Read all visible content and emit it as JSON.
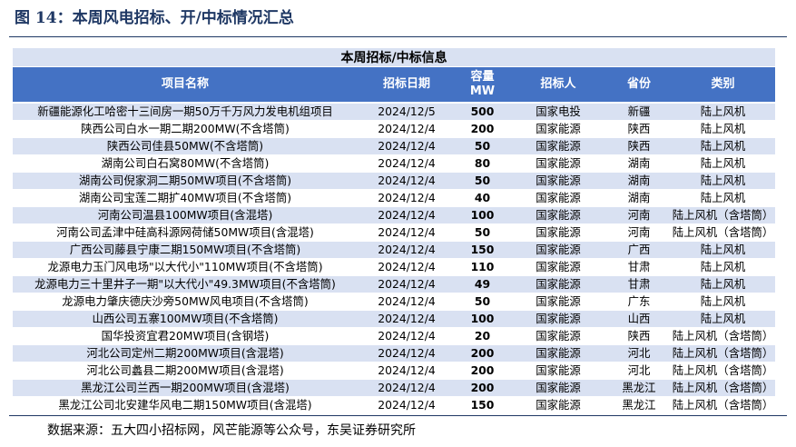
{
  "figure_title": "图 14：本周风电招标、开/中标情况汇总",
  "table": {
    "banner": "本周招标/中标信息",
    "headers": {
      "name": "项目名称",
      "date": "招标日期",
      "capacity_line1": "容量",
      "capacity_line2": "MW",
      "tenderer": "招标人",
      "province": "省份",
      "category": "类别"
    },
    "rows": [
      {
        "name": "新疆能源化工哈密十三间房一期50万千万风力发电机组项目",
        "date": "2024/12/5",
        "capacity": "500",
        "tenderer": "国家电投",
        "province": "新疆",
        "category": "陆上风机"
      },
      {
        "name": "陕西公司白水一期二期200MW(不含塔筒)",
        "date": "2024/12/4",
        "capacity": "200",
        "tenderer": "国家能源",
        "province": "陕西",
        "category": "陆上风机"
      },
      {
        "name": "陕西公司佳县50MW(不含塔筒)",
        "date": "2024/12/4",
        "capacity": "50",
        "tenderer": "国家能源",
        "province": "陕西",
        "category": "陆上风机"
      },
      {
        "name": "湖南公司白石窝80MW(不含塔筒)",
        "date": "2024/12/4",
        "capacity": "80",
        "tenderer": "国家能源",
        "province": "湖南",
        "category": "陆上风机"
      },
      {
        "name": "湖南公司倪家洞二期50MW项目(不含塔筒)",
        "date": "2024/12/4",
        "capacity": "50",
        "tenderer": "国家能源",
        "province": "湖南",
        "category": "陆上风机"
      },
      {
        "name": "湖南公司宝莲二期扩40MW项目(不含塔筒)",
        "date": "2024/12/4",
        "capacity": "40",
        "tenderer": "国家能源",
        "province": "湖南",
        "category": "陆上风机"
      },
      {
        "name": "河南公司温县100MW项目(含混塔)",
        "date": "2024/12/4",
        "capacity": "100",
        "tenderer": "国家能源",
        "province": "河南",
        "category": "陆上风机（含塔筒）"
      },
      {
        "name": "河南公司孟津中硅高科源网荷储50MW项目(含混塔)",
        "date": "2024/12/4",
        "capacity": "50",
        "tenderer": "国家能源",
        "province": "河南",
        "category": "陆上风机（含塔筒）"
      },
      {
        "name": "广西公司藤县宁康二期150MW项目(不含塔筒)",
        "date": "2024/12/4",
        "capacity": "150",
        "tenderer": "国家能源",
        "province": "广西",
        "category": "陆上风机"
      },
      {
        "name": "龙源电力玉门风电场\"以大代小\"110MW项目(不含塔筒)",
        "date": "2024/12/4",
        "capacity": "110",
        "tenderer": "国家能源",
        "province": "甘肃",
        "category": "陆上风机"
      },
      {
        "name": "龙源电力三十里井子一期\"以大代小\"49.3MW项目(不含塔筒)",
        "date": "2024/12/4",
        "capacity": "49",
        "tenderer": "国家能源",
        "province": "甘肃",
        "category": "陆上风机"
      },
      {
        "name": "龙源电力肇庆德庆沙旁50MW风电项目(不含塔筒)",
        "date": "2024/12/4",
        "capacity": "50",
        "tenderer": "国家能源",
        "province": "广东",
        "category": "陆上风机"
      },
      {
        "name": "山西公司五寨100MW项目(不含塔筒)",
        "date": "2024/12/4",
        "capacity": "100",
        "tenderer": "国家能源",
        "province": "山西",
        "category": "陆上风机"
      },
      {
        "name": "国华投资宜君20MW项目(含钢塔)",
        "date": "2024/12/4",
        "capacity": "20",
        "tenderer": "国家能源",
        "province": "陕西",
        "category": "陆上风机（含塔筒）"
      },
      {
        "name": "河北公司定州二期200MW项目(含混塔)",
        "date": "2024/12/4",
        "capacity": "200",
        "tenderer": "国家能源",
        "province": "河北",
        "category": "陆上风机（含塔筒）"
      },
      {
        "name": "河北公司蠡县二期200MW项目(含混塔)",
        "date": "2024/12/4",
        "capacity": "200",
        "tenderer": "国家能源",
        "province": "河北",
        "category": "陆上风机（含塔筒）"
      },
      {
        "name": "黑龙江公司兰西一期200MW项目(含混塔)",
        "date": "2024/12/4",
        "capacity": "200",
        "tenderer": "国家能源",
        "province": "黑龙江",
        "category": "陆上风机（含塔筒）"
      },
      {
        "name": "黑龙江公司北安建华风电二期150MW项目(含混塔)",
        "date": "2024/12/4",
        "capacity": "150",
        "tenderer": "国家能源",
        "province": "黑龙江",
        "category": "陆上风机（含塔筒）"
      }
    ]
  },
  "source": "数据来源：五大四小招标网，风芒能源等公众号，东吴证券研究所"
}
